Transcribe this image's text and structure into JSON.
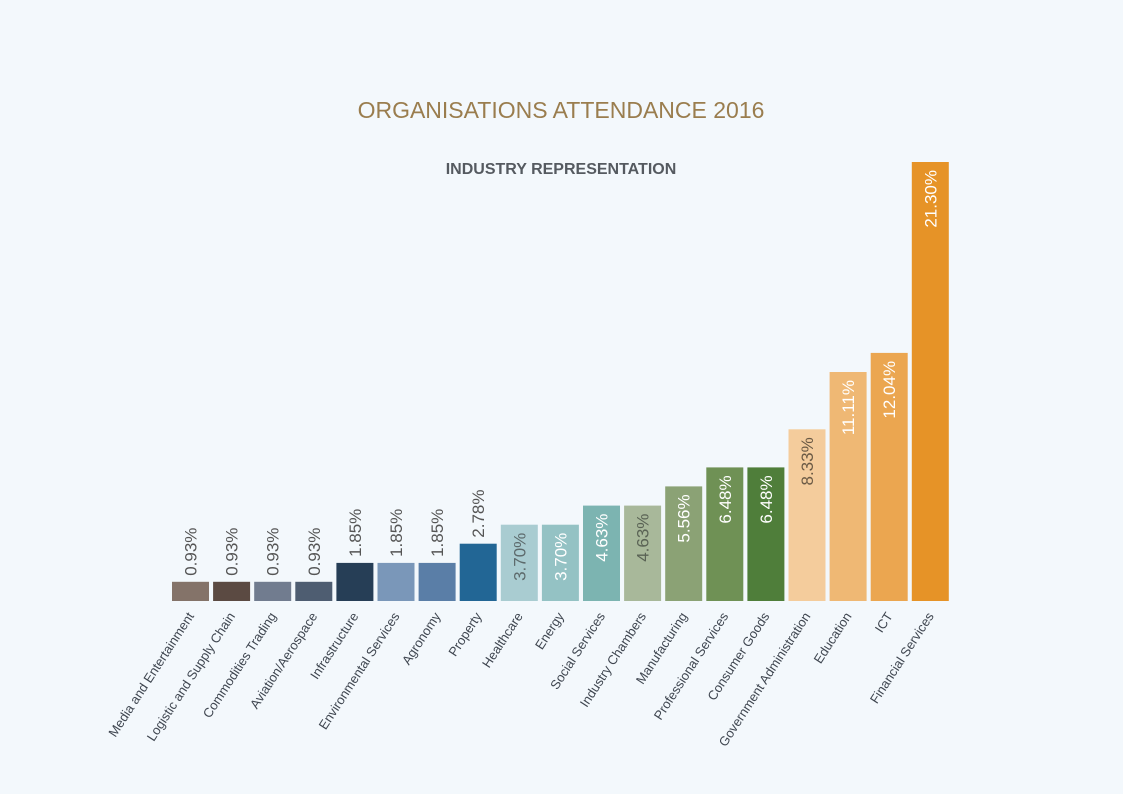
{
  "title": "ORGANISATIONS ATTENDANCE 2016",
  "subtitle": "INDUSTRY REPRESENTATION",
  "chart_data": {
    "type": "bar",
    "title": "ORGANISATIONS ATTENDANCE 2016",
    "subtitle": "INDUSTRY REPRESENTATION",
    "xlabel": "",
    "ylabel": "",
    "ylim": [
      0,
      21.3
    ],
    "grid": false,
    "categories": [
      "Media and Entertainment",
      "Logistic and Supply Chain",
      "Commodities Trading",
      "Aviation/Aerospace",
      "Infrastructure",
      "Environmental Services",
      "Agronomy",
      "Property",
      "Healthcare",
      "Energy",
      "Social Services",
      "Industry Chambers",
      "Manufacturing",
      "Professional Services",
      "Consumer Goods",
      "Government Administration",
      "Education",
      "ICT",
      "Financial Services"
    ],
    "values": [
      0.93,
      0.93,
      0.93,
      0.93,
      1.85,
      1.85,
      1.85,
      2.78,
      3.7,
      3.7,
      4.63,
      4.63,
      5.56,
      6.48,
      6.48,
      8.33,
      11.11,
      12.04,
      21.3
    ],
    "value_labels": [
      "0.93%",
      "0.93%",
      "0.93%",
      "0.93%",
      "1.85%",
      "1.85%",
      "1.85%",
      "2.78%",
      "3.70%",
      "3.70%",
      "4.63%",
      "4.63%",
      "5.56%",
      "6.48%",
      "6.48%",
      "8.33%",
      "11.11%",
      "12.04%",
      "21.30%"
    ],
    "colors": [
      "#847369",
      "#5b4a42",
      "#717c8f",
      "#4e5d71",
      "#263e56",
      "#7a97b9",
      "#5a7ea7",
      "#226695",
      "#a9ccd1",
      "#94c2c4",
      "#7cb4b1",
      "#a8b89a",
      "#8ba275",
      "#6f9155",
      "#4f7e3a",
      "#f4cc9c",
      "#efb874",
      "#eba650",
      "#e69327"
    ],
    "label_colors": [
      "#555555",
      "#555555",
      "#555555",
      "#555555",
      "#555555",
      "#555555",
      "#555555",
      "#555555",
      "#5d6a6c",
      "#ffffff",
      "#ffffff",
      "#5a6355",
      "#ffffff",
      "#ffffff",
      "#ffffff",
      "#6b5a45",
      "#ffffff",
      "#ffffff",
      "#ffffff"
    ]
  }
}
